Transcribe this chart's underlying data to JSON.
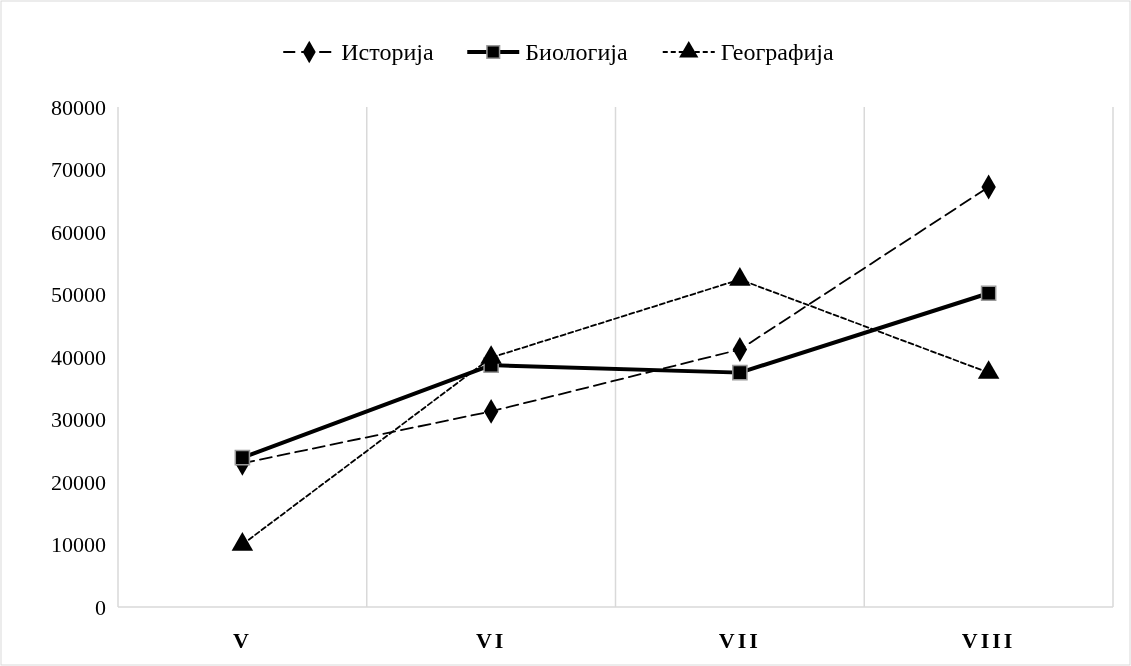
{
  "chart_data": {
    "type": "line",
    "categories": [
      "V",
      "VI",
      "VII",
      "VIII"
    ],
    "series": [
      {
        "name": "Историја",
        "color": "#000000",
        "values": [
          23000,
          31300,
          41200,
          67200
        ],
        "marker": "diamond",
        "line_style": "dashed"
      },
      {
        "name": "Биологија",
        "color": "#000000",
        "values": [
          23900,
          38700,
          37500,
          50200
        ],
        "marker": "square",
        "line_style": "solid"
      },
      {
        "name": "Географија",
        "color": "#000000",
        "values": [
          10000,
          39900,
          52400,
          37500
        ],
        "marker": "triangle",
        "line_style": "dotted"
      }
    ],
    "ylim": [
      0,
      80000
    ],
    "yticks": [
      0,
      10000,
      20000,
      30000,
      40000,
      50000,
      60000,
      70000,
      80000
    ],
    "grid": "x",
    "legend": "top"
  }
}
